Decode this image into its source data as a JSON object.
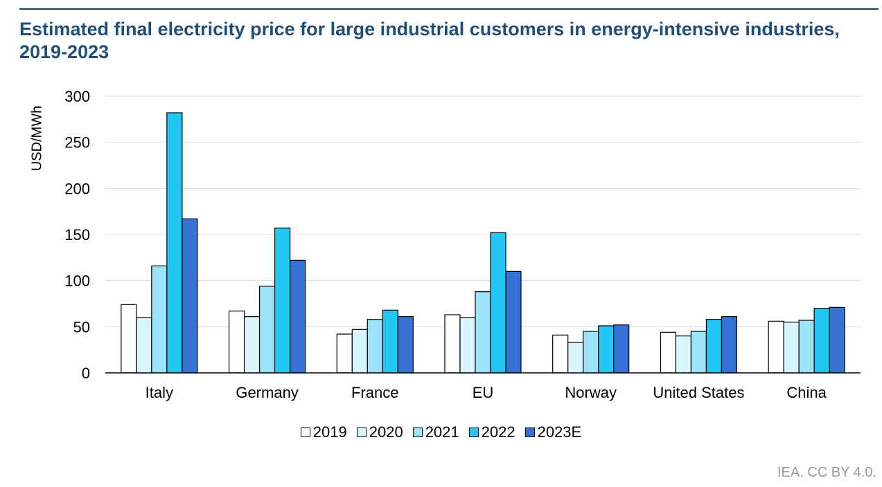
{
  "title": "Estimated final electricity price for large industrial customers in energy-intensive industries, 2019-2023",
  "source": "IEA. CC BY 4.0.",
  "chart_data": {
    "type": "bar",
    "title": "Estimated final electricity price for large industrial customers in energy-intensive industries, 2019-2023",
    "xlabel": "",
    "ylabel": "USD/MWh",
    "ylim": [
      0,
      300
    ],
    "yticks": [
      0,
      50,
      100,
      150,
      200,
      250,
      300
    ],
    "grid": true,
    "legend_position": "bottom",
    "categories": [
      "Italy",
      "Germany",
      "France",
      "EU",
      "Norway",
      "United States",
      "China"
    ],
    "series": [
      {
        "name": "2019",
        "color": "#ffffff",
        "values": [
          74,
          67,
          42,
          63,
          41,
          44,
          56
        ]
      },
      {
        "name": "2020",
        "color": "#d9f5fd",
        "values": [
          60,
          61,
          47,
          60,
          33,
          40,
          55
        ]
      },
      {
        "name": "2021",
        "color": "#9be3f9",
        "values": [
          116,
          94,
          58,
          88,
          45,
          45,
          57
        ]
      },
      {
        "name": "2022",
        "color": "#22c7f3",
        "values": [
          282,
          157,
          68,
          152,
          51,
          58,
          70
        ]
      },
      {
        "name": "2023E",
        "color": "#3572d4",
        "values": [
          167,
          122,
          61,
          110,
          52,
          61,
          71
        ]
      }
    ]
  }
}
